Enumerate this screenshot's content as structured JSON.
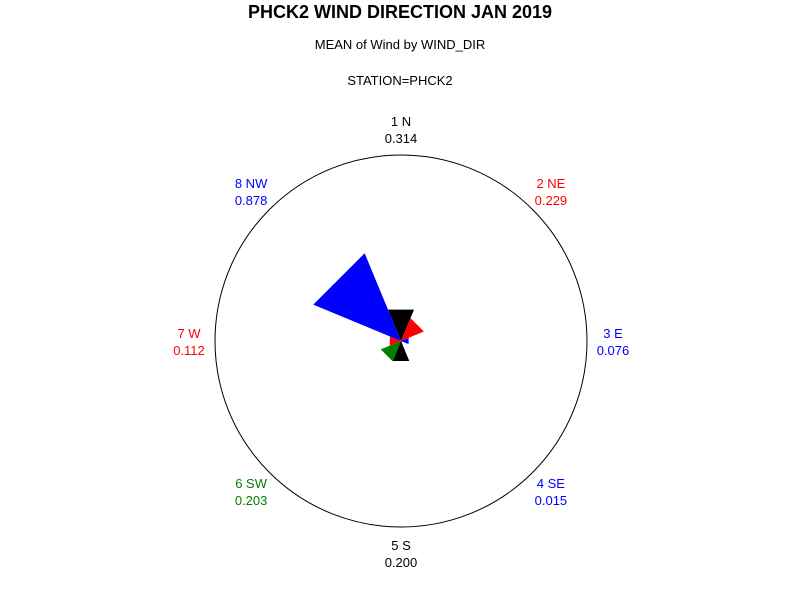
{
  "title": "PHCK2 WIND DIRECTION JAN 2019",
  "subtitle": "MEAN of Wind by WIND_DIR",
  "station_label": "STATION=PHCK2",
  "chart_data": {
    "type": "polar-star",
    "title": "PHCK2 WIND DIRECTION JAN 2019",
    "subtitle": "MEAN of Wind by WIND_DIR",
    "group_label": "STATION=PHCK2",
    "rmax": 1.72,
    "categories": [
      {
        "label": "1 N",
        "value": "0.314",
        "v": 0.314,
        "color": "#000000"
      },
      {
        "label": "2 NE",
        "value": "0.229",
        "v": 0.229,
        "color": "#ff0000"
      },
      {
        "label": "3 E",
        "value": "0.076",
        "v": 0.076,
        "color": "#0000ff"
      },
      {
        "label": "4 SE",
        "value": "0.015",
        "v": 0.015,
        "color": "#0000ff"
      },
      {
        "label": "5 S",
        "value": "0.200",
        "v": 0.2,
        "color": "#000000"
      },
      {
        "label": "6 SW",
        "value": "0.203",
        "v": 0.203,
        "color": "#008000"
      },
      {
        "label": "7 W",
        "value": "0.112",
        "v": 0.112,
        "color": "#ff0000"
      },
      {
        "label": "8 NW",
        "value": "0.878",
        "v": 0.878,
        "color": "#0000ff"
      }
    ]
  }
}
